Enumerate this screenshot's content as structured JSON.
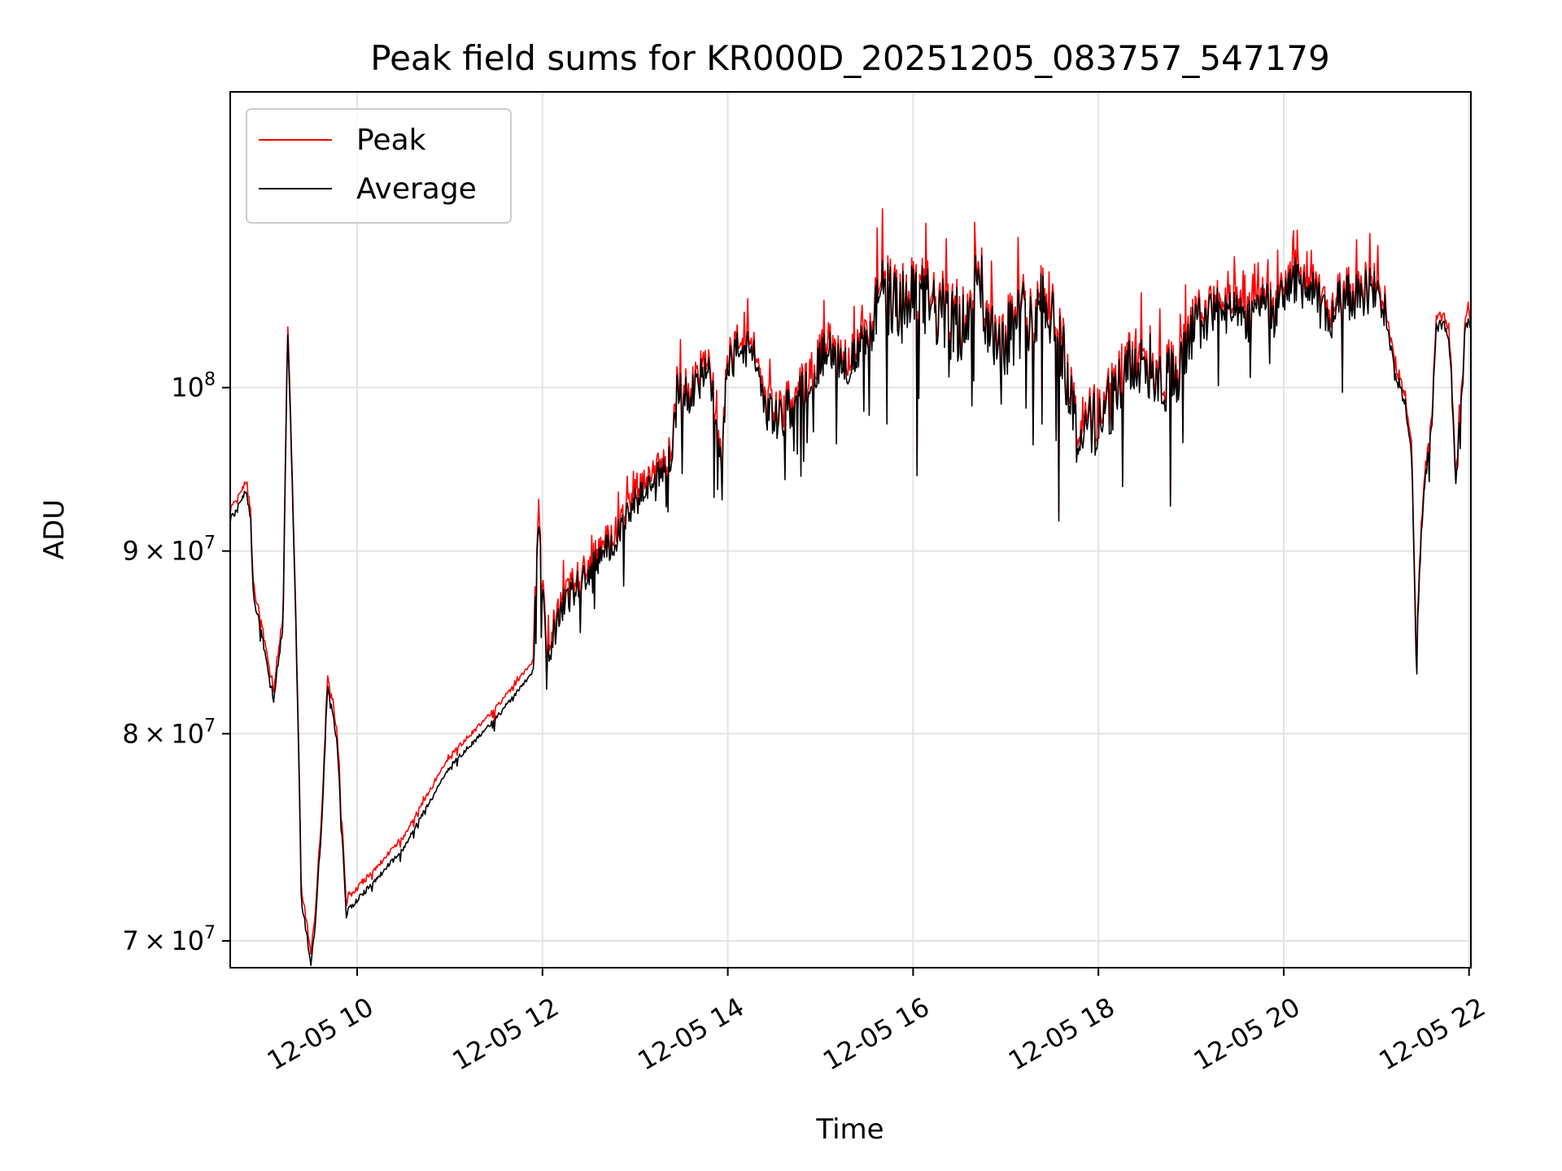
{
  "chart_data": {
    "type": "line",
    "title": "Peak field sums for KR000D_20251205_083757_547179",
    "xlabel": "Time",
    "ylabel": "ADU",
    "yscale": "log",
    "xlim": [
      8.63,
      22.02
    ],
    "ylim": [
      68800000,
      121000000
    ],
    "grid": true,
    "legend_position": "top-left",
    "x_ticks": [
      {
        "value": 10,
        "label": "12-05 10"
      },
      {
        "value": 12,
        "label": "12-05 12"
      },
      {
        "value": 14,
        "label": "12-05 14"
      },
      {
        "value": 16,
        "label": "12-05 16"
      },
      {
        "value": 18,
        "label": "12-05 18"
      },
      {
        "value": 20,
        "label": "12-05 20"
      },
      {
        "value": 22,
        "label": "12-05 22"
      }
    ],
    "y_ticks": [
      {
        "value": 70000000,
        "mantissa": "7",
        "exp": "7"
      },
      {
        "value": 80000000,
        "mantissa": "8",
        "exp": "7"
      },
      {
        "value": 90000000,
        "mantissa": "9",
        "exp": "7"
      },
      {
        "value": 100000000,
        "mantissa": "",
        "exp": "8"
      }
    ],
    "series": [
      {
        "name": "Peak",
        "color": "#ff0000",
        "anchors": [
          [
            8.63,
            92.0
          ],
          [
            8.75,
            93.0
          ],
          [
            8.8,
            94.0
          ],
          [
            8.85,
            92.0
          ],
          [
            8.88,
            87.5
          ],
          [
            8.95,
            86.0
          ],
          [
            9.1,
            82.0
          ],
          [
            9.2,
            86.0
          ],
          [
            9.25,
            104.0
          ],
          [
            9.32,
            90.0
          ],
          [
            9.4,
            72.0
          ],
          [
            9.5,
            69.2
          ],
          [
            9.55,
            71.0
          ],
          [
            9.62,
            76.0
          ],
          [
            9.68,
            82.5
          ],
          [
            9.78,
            80.0
          ],
          [
            9.88,
            71.5
          ],
          [
            10.2,
            73.0
          ],
          [
            10.5,
            74.5
          ],
          [
            11.0,
            78.5
          ],
          [
            11.5,
            81.0
          ],
          [
            11.9,
            83.5
          ],
          [
            11.95,
            92.0
          ],
          [
            12.05,
            84.0
          ],
          [
            12.2,
            87.0
          ],
          [
            12.5,
            89.0
          ],
          [
            12.8,
            91.0
          ],
          [
            13.0,
            93.0
          ],
          [
            13.3,
            95.0
          ],
          [
            13.4,
            96.0
          ],
          [
            13.45,
            100.0
          ],
          [
            13.55,
            99.5
          ],
          [
            13.65,
            100.5
          ],
          [
            13.8,
            101.0
          ],
          [
            13.92,
            96.0
          ],
          [
            14.0,
            101.5
          ],
          [
            14.15,
            103.0
          ],
          [
            14.3,
            102.0
          ],
          [
            14.4,
            99.0
          ],
          [
            14.55,
            98.0
          ],
          [
            14.75,
            99.5
          ],
          [
            14.95,
            101.5
          ],
          [
            15.1,
            103.0
          ],
          [
            15.3,
            101.5
          ],
          [
            15.5,
            103.5
          ],
          [
            15.65,
            106.5
          ],
          [
            15.8,
            105.5
          ],
          [
            16.1,
            106.0
          ],
          [
            16.4,
            104.5
          ],
          [
            16.62,
            104.0
          ],
          [
            16.68,
            110.0
          ],
          [
            16.8,
            104.0
          ],
          [
            17.0,
            103.5
          ],
          [
            17.2,
            105.0
          ],
          [
            17.45,
            106.0
          ],
          [
            17.6,
            103.0
          ],
          [
            17.78,
            97.0
          ],
          [
            17.9,
            97.5
          ],
          [
            18.1,
            99.0
          ],
          [
            18.3,
            101.0
          ],
          [
            18.5,
            102.0
          ],
          [
            18.7,
            100.5
          ],
          [
            18.9,
            101.5
          ],
          [
            19.05,
            104.0
          ],
          [
            19.3,
            105.5
          ],
          [
            19.6,
            104.5
          ],
          [
            19.78,
            106.5
          ],
          [
            19.9,
            105.0
          ],
          [
            20.1,
            107.5
          ],
          [
            20.3,
            106.5
          ],
          [
            20.5,
            104.5
          ],
          [
            20.6,
            106.0
          ],
          [
            20.85,
            106.5
          ],
          [
            21.0,
            106.8
          ],
          [
            21.1,
            105.0
          ],
          [
            21.2,
            101.0
          ],
          [
            21.3,
            99.5
          ],
          [
            21.38,
            96.0
          ],
          [
            21.43,
            84.0
          ],
          [
            21.5,
            93.0
          ],
          [
            21.6,
            98.0
          ],
          [
            21.65,
            104.3
          ],
          [
            21.75,
            104.3
          ],
          [
            21.8,
            102.0
          ],
          [
            21.85,
            95.0
          ],
          [
            21.93,
            100.0
          ],
          [
            21.96,
            104.5
          ],
          [
            22.02,
            104.5
          ]
        ]
      },
      {
        "name": "Average",
        "color": "#000000",
        "anchors": [
          [
            8.63,
            92.0
          ],
          [
            8.75,
            93.0
          ],
          [
            8.8,
            94.0
          ],
          [
            8.85,
            92.0
          ],
          [
            8.88,
            87.5
          ],
          [
            8.95,
            86.0
          ],
          [
            9.1,
            82.0
          ],
          [
            9.2,
            86.0
          ],
          [
            9.25,
            104.0
          ],
          [
            9.32,
            90.0
          ],
          [
            9.4,
            72.0
          ],
          [
            9.5,
            69.2
          ],
          [
            9.55,
            71.0
          ],
          [
            9.62,
            76.0
          ],
          [
            9.68,
            82.5
          ],
          [
            9.78,
            80.0
          ],
          [
            9.88,
            71.5
          ],
          [
            10.2,
            73.0
          ],
          [
            10.5,
            74.5
          ],
          [
            11.0,
            78.5
          ],
          [
            11.5,
            81.0
          ],
          [
            11.9,
            83.5
          ],
          [
            11.95,
            92.0
          ],
          [
            12.05,
            84.0
          ],
          [
            12.2,
            87.0
          ],
          [
            12.5,
            89.0
          ],
          [
            12.8,
            91.0
          ],
          [
            13.0,
            93.0
          ],
          [
            13.3,
            95.0
          ],
          [
            13.4,
            96.0
          ],
          [
            13.45,
            100.0
          ],
          [
            13.55,
            99.5
          ],
          [
            13.65,
            100.5
          ],
          [
            13.8,
            101.0
          ],
          [
            13.92,
            96.0
          ],
          [
            14.0,
            101.5
          ],
          [
            14.15,
            103.0
          ],
          [
            14.3,
            102.0
          ],
          [
            14.4,
            99.0
          ],
          [
            14.55,
            98.0
          ],
          [
            14.75,
            99.5
          ],
          [
            14.95,
            101.5
          ],
          [
            15.1,
            103.0
          ],
          [
            15.3,
            101.5
          ],
          [
            15.5,
            103.5
          ],
          [
            15.65,
            106.5
          ],
          [
            15.8,
            105.5
          ],
          [
            16.1,
            106.0
          ],
          [
            16.4,
            104.5
          ],
          [
            16.62,
            104.0
          ],
          [
            16.68,
            110.0
          ],
          [
            16.8,
            104.0
          ],
          [
            17.0,
            103.5
          ],
          [
            17.2,
            105.0
          ],
          [
            17.45,
            106.0
          ],
          [
            17.6,
            103.0
          ],
          [
            17.78,
            97.0
          ],
          [
            17.9,
            97.5
          ],
          [
            18.1,
            99.0
          ],
          [
            18.3,
            101.0
          ],
          [
            18.5,
            102.0
          ],
          [
            18.7,
            100.5
          ],
          [
            18.9,
            101.5
          ],
          [
            19.05,
            104.0
          ],
          [
            19.3,
            105.5
          ],
          [
            19.6,
            104.5
          ],
          [
            19.78,
            106.5
          ],
          [
            19.9,
            105.0
          ],
          [
            20.1,
            107.5
          ],
          [
            20.3,
            106.5
          ],
          [
            20.5,
            104.5
          ],
          [
            20.6,
            106.0
          ],
          [
            20.85,
            106.5
          ],
          [
            21.0,
            106.8
          ],
          [
            21.1,
            105.0
          ],
          [
            21.2,
            101.0
          ],
          [
            21.3,
            99.5
          ],
          [
            21.38,
            96.0
          ],
          [
            21.43,
            84.0
          ],
          [
            21.5,
            93.0
          ],
          [
            21.6,
            98.0
          ],
          [
            21.65,
            104.3
          ],
          [
            21.75,
            104.3
          ],
          [
            21.8,
            102.0
          ],
          [
            21.85,
            95.0
          ],
          [
            21.93,
            100.0
          ],
          [
            21.96,
            104.5
          ],
          [
            22.02,
            104.5
          ]
        ]
      }
    ],
    "anchor_units": "x in hours of 2025-12-05, y in millions of ADU"
  }
}
